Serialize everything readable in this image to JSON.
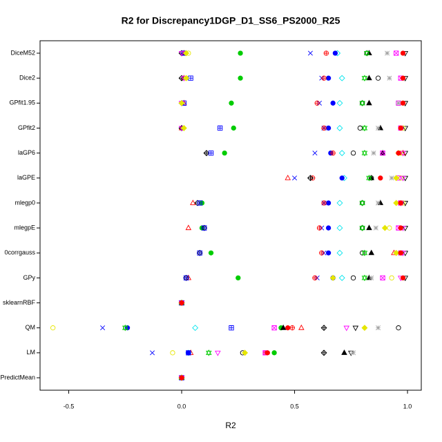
{
  "chart_data": {
    "type": "dot",
    "title": "R2 for Discrepancy1DGP_D1_SS6_PS2000_R25",
    "x_label": "R2",
    "categories": [
      "DiceM52",
      "Dice2",
      "GPfit1.95",
      "GPfit2",
      "laGP6",
      "laGPE",
      "mlegp0",
      "mlegpE",
      "0corrgauss",
      "GPy",
      "sklearnRBF",
      "QM",
      "LM",
      "PredictMean"
    ],
    "xlim": [
      -0.627,
      1.061
    ],
    "xticks": [
      -0.5,
      {
        "value": 0,
        "label": "0.0"
      },
      0.5,
      {
        "value": 1,
        "label": "1.0"
      }
    ],
    "series": [
      {
        "marker": "filled-circle",
        "color": "#00cc00",
        "values": [
          0.26,
          0.26,
          0.22,
          0.23,
          0.19,
          null,
          0.09,
          0.09,
          0.13,
          0.25,
          0,
          0.44,
          0.41,
          0
        ]
      },
      {
        "marker": "x",
        "color": "#0000ff",
        "values": [
          0.57,
          0.62,
          0.61,
          0.63,
          0.59,
          0.5,
          0.63,
          0.62,
          0.63,
          0.6,
          0,
          -0.35,
          -0.13,
          0
        ]
      },
      {
        "marker": "filled-triangle",
        "color": "#000000",
        "values": [
          0.83,
          0.83,
          0.83,
          0.88,
          0.89,
          0.84,
          0.88,
          0.83,
          0.84,
          0.83,
          0,
          0.45,
          0.72,
          0
        ]
      },
      {
        "marker": "down-triangle",
        "color": "#000000",
        "values": [
          0.99,
          0.99,
          0.99,
          0.99,
          0.99,
          0.99,
          0.99,
          0.99,
          0.99,
          0.99,
          0,
          0.77,
          0.75,
          0
        ]
      },
      {
        "marker": "diamond",
        "color": "#00e5ee",
        "values": [
          0.69,
          0.71,
          0.7,
          0.7,
          0.71,
          0.72,
          0.7,
          0.7,
          0.7,
          0.71,
          0,
          0.06,
          0.03,
          0
        ]
      },
      {
        "marker": "circle",
        "color": "#000000",
        "values": [
          0.82,
          0.87,
          0.8,
          0.79,
          0.76,
          0.84,
          0.8,
          0.8,
          0.8,
          0.76,
          0,
          0.96,
          0.27,
          0
        ]
      },
      {
        "marker": "triangle",
        "color": "#ff0000",
        "values": [
          0.01,
          0.01,
          0.01,
          0.0,
          0.98,
          0.47,
          0.05,
          0.03,
          0.94,
          0.03,
          0,
          0.53,
          0.04,
          0
        ]
      },
      {
        "marker": "filled-circle",
        "color": "#0000ff",
        "values": [
          0.68,
          0.65,
          0.67,
          0.65,
          0.66,
          0.71,
          0.65,
          0.65,
          0.65,
          0.67,
          0,
          -0.24,
          0.03,
          0
        ]
      },
      {
        "marker": "circle-plus",
        "color": "#ff0000",
        "values": [
          0.64,
          0.63,
          0.6,
          0.63,
          0.67,
          0.58,
          0.63,
          0.61,
          0.62,
          0.59,
          0,
          0.49,
          0.37,
          0
        ]
      },
      {
        "marker": "diamond-plus",
        "color": "#000000",
        "values": [
          0.0,
          0.0,
          0.0,
          0.0,
          0.11,
          0.57,
          0.07,
          0.1,
          0.08,
          0.02,
          0,
          0.63,
          0.63,
          0
        ]
      },
      {
        "marker": "square-x",
        "color": "#ff00ff",
        "values": [
          0.95,
          0.97,
          0.96,
          0.97,
          0.89,
          0.96,
          0.97,
          0.96,
          0.97,
          0.89,
          0,
          0.41,
          0.37,
          0
        ]
      },
      {
        "marker": "circle",
        "color": "#e6e600",
        "values": [
          0.03,
          0.02,
          0.98,
          0.98,
          0.97,
          0.97,
          0.98,
          0.92,
          0.97,
          0.93,
          0,
          -0.57,
          -0.04,
          0
        ]
      },
      {
        "marker": "star",
        "color": "#a0a0a0",
        "values": [
          0.91,
          0.92,
          0.96,
          0.87,
          0.85,
          0.93,
          0.87,
          0.86,
          0.96,
          0.84,
          0,
          0.87,
          0.76,
          0
        ]
      },
      {
        "marker": "square-plus",
        "color": "#0000ff",
        "values": [
          0.01,
          0.04,
          0.01,
          0.17,
          0.13,
          null,
          0.08,
          0.1,
          0.08,
          0.02,
          0,
          0.22,
          0.03,
          0
        ]
      },
      {
        "marker": "david",
        "color": "#00cc00",
        "values": [
          0.82,
          0.81,
          0.8,
          0.81,
          0.81,
          0.83,
          0.8,
          0.8,
          0.81,
          0.81,
          0,
          -0.25,
          0.12,
          0
        ]
      },
      {
        "marker": "down-triangle",
        "color": "#ff00ff",
        "values": [
          0.0,
          0.01,
          0.0,
          0.0,
          0.98,
          0.98,
          0.97,
          0.98,
          0.98,
          0.97,
          0,
          0.73,
          0.16,
          0
        ]
      },
      {
        "marker": "filled-diamond",
        "color": "#e6e600",
        "values": [
          0.02,
          0.02,
          0.0,
          0.01,
          0.96,
          0.95,
          0.95,
          0.9,
          0.95,
          0.67,
          0,
          0.81,
          0.28,
          0
        ]
      },
      {
        "marker": "filled-circle",
        "color": "#ff0000",
        "values": [
          0.98,
          0.98,
          0.98,
          0.97,
          0.96,
          0.88,
          0.97,
          0.97,
          0.97,
          0.98,
          0,
          0.47,
          0.38,
          0
        ]
      }
    ]
  }
}
